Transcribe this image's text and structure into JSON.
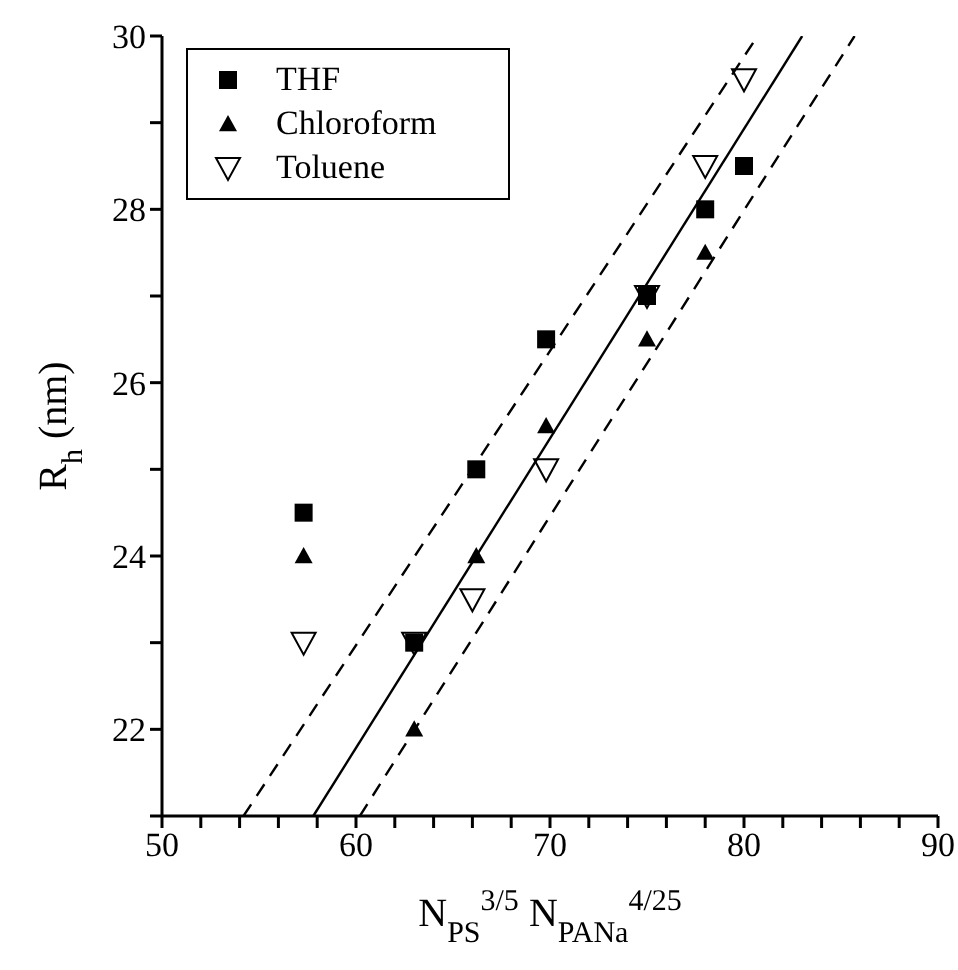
{
  "chart_data": {
    "type": "scatter",
    "xlabel": "N$_{PS}$$^{3/5}$ N$_{PANa}$$^{4/25}$",
    "ylabel": "R$_{h}$  (nm)",
    "xlim": [
      50,
      90
    ],
    "xticks": [
      50,
      {
        "value": 52,
        "label": null
      },
      {
        "value": 54,
        "label": null
      },
      {
        "value": 56,
        "label": null
      },
      {
        "value": 58,
        "label": null
      },
      60,
      {
        "value": 62,
        "label": null
      },
      {
        "value": 64,
        "label": null
      },
      {
        "value": 66,
        "label": null
      },
      {
        "value": 68,
        "label": null
      },
      70,
      {
        "value": 72,
        "label": null
      },
      {
        "value": 74,
        "label": null
      },
      {
        "value": 76,
        "label": null
      },
      {
        "value": 78,
        "label": null
      },
      80,
      {
        "value": 82,
        "label": null
      },
      {
        "value": 84,
        "label": null
      },
      {
        "value": 86,
        "label": null
      },
      {
        "value": 88,
        "label": null
      },
      90
    ],
    "ylim": [
      21,
      30
    ],
    "yticks": [
      {
        "value": 21,
        "label": null
      },
      22,
      {
        "value": 23,
        "label": null
      },
      24,
      {
        "value": 25,
        "label": null
      },
      26,
      {
        "value": 27,
        "label": null
      },
      28,
      {
        "value": 29,
        "label": null
      },
      30
    ],
    "legend": "top left",
    "series": [
      {
        "name": "THF",
        "color": "#000000",
        "marker": "square",
        "x": [
          57.3,
          63,
          66.2,
          69.8,
          75,
          78,
          80
        ],
        "values": [
          24.5,
          23,
          25,
          26.5,
          27,
          28,
          28.5
        ]
      },
      {
        "name": "Chloroform",
        "color": "#000000",
        "marker": "triangle",
        "x": [
          57.3,
          63,
          66.2,
          69.8,
          75,
          78
        ],
        "values": [
          24,
          22,
          24,
          25.5,
          26.5,
          27.5
        ]
      },
      {
        "name": "Toluene",
        "color": "#000000",
        "marker": "triangle-down",
        "x": [
          57.3,
          63,
          66,
          69.8,
          75,
          78,
          80
        ],
        "values": [
          23,
          23,
          23.5,
          25,
          27,
          28.5,
          29.5
        ]
      },
      {
        "type": "line",
        "color": "#000000",
        "marker": "none",
        "line_style": "solid",
        "x": [
          57.8,
          83.0
        ],
        "values": [
          21,
          30
        ]
      },
      {
        "type": "line",
        "color": "#000000",
        "marker": "none",
        "line_style": "dashed",
        "x": [
          54.2,
          80.7
        ],
        "values": [
          21,
          30
        ]
      },
      {
        "type": "line",
        "color": "#000000",
        "marker": "none",
        "line_style": "dashed",
        "x": [
          60.2,
          85.7
        ],
        "values": [
          21,
          30
        ]
      }
    ]
  }
}
